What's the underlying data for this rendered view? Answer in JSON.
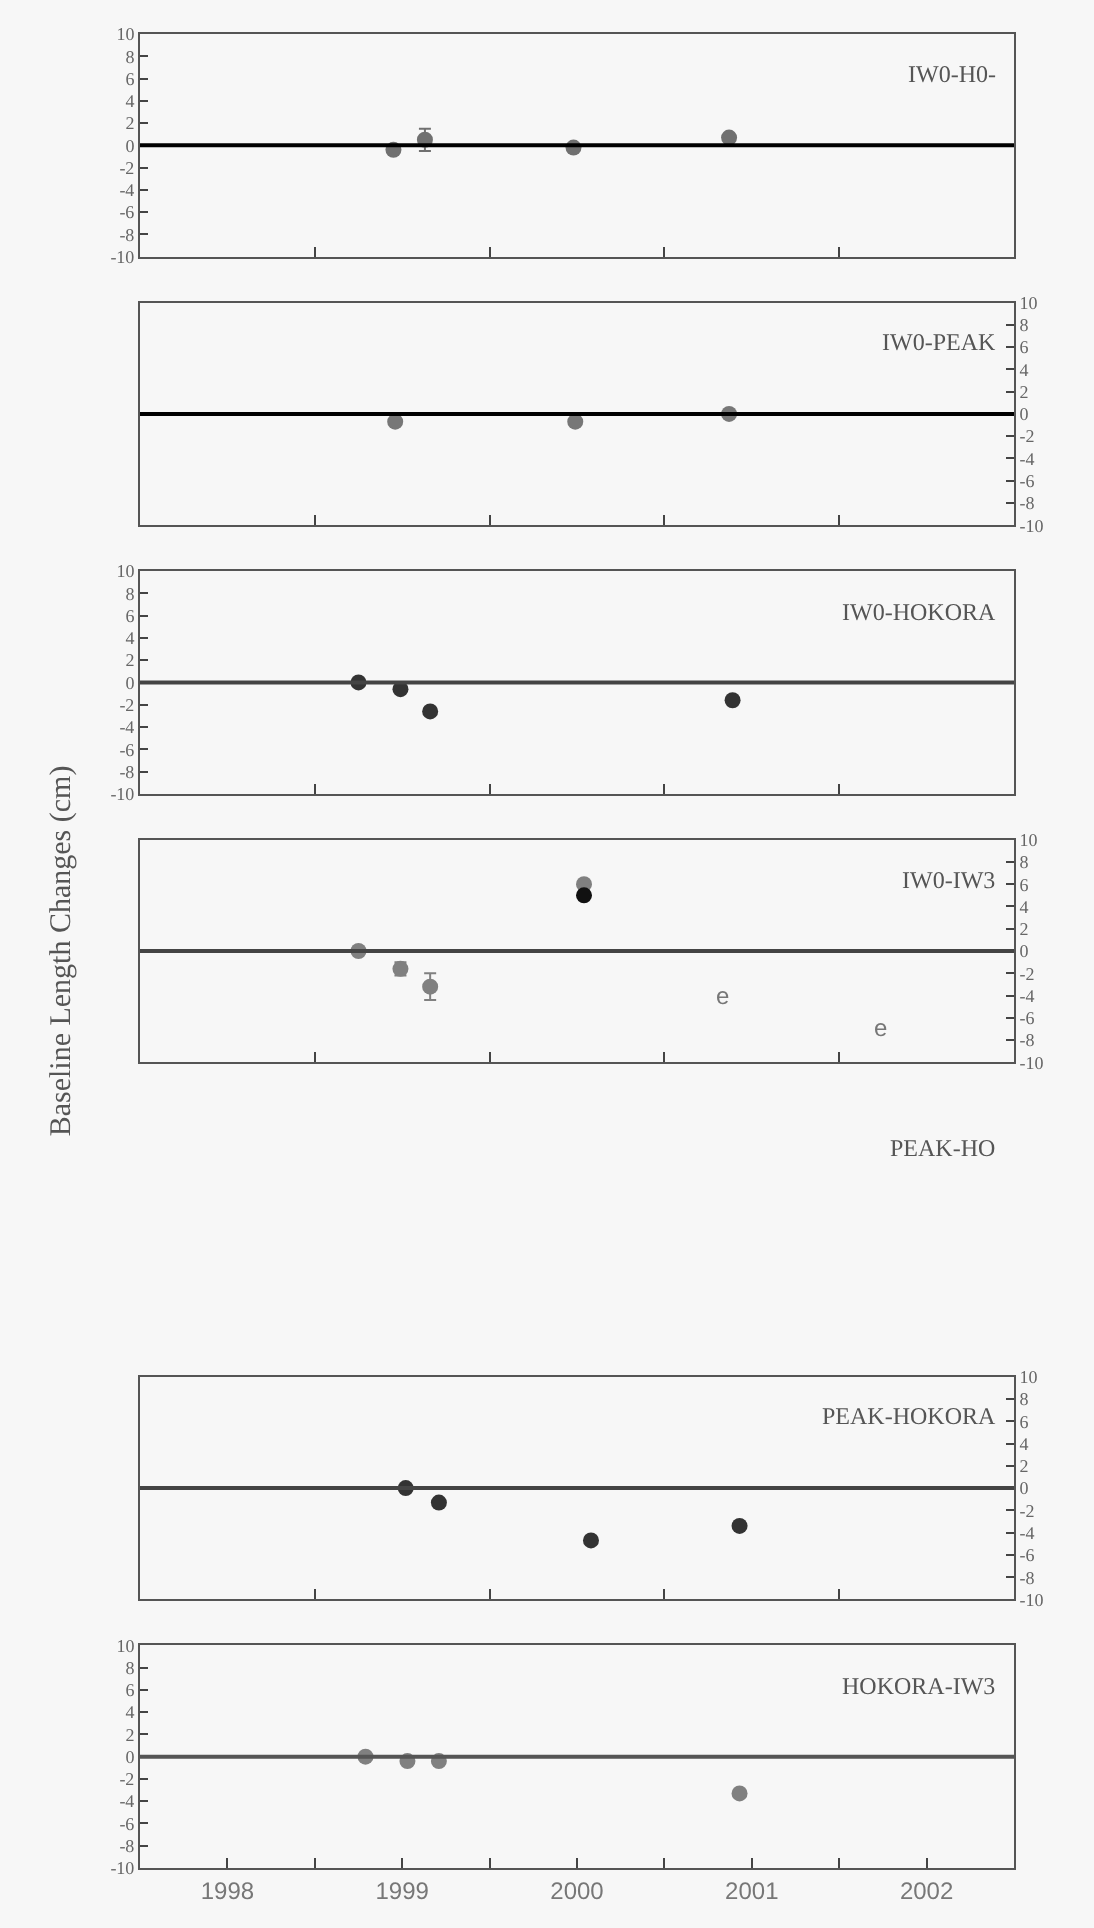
{
  "chart_data": [
    {
      "type": "scatter",
      "title": "IW0-H0-",
      "xlim": [
        1998,
        2003
      ],
      "xticks": [
        {
          "value": 1999,
          "label": null
        },
        {
          "value": 2000,
          "label": null
        },
        {
          "value": 2001,
          "label": null
        },
        {
          "value": 2002,
          "label": null
        }
      ],
      "ylim": [
        -10,
        10
      ],
      "yticks": [
        -10,
        -8,
        -6,
        -4,
        -2,
        0,
        2,
        4,
        6,
        8,
        10
      ],
      "tick_labels": "y",
      "ref_lines": [
        {
          "axis": "y",
          "value": 0,
          "color": "#000000"
        }
      ],
      "marker": "circle",
      "series": [
        {
          "color": "#707070",
          "x": [
            1999.45,
            1999.63,
            2000.48,
            2001.37
          ],
          "values": [
            -0.4,
            0.5,
            -0.2,
            0.7
          ],
          "errors": [
            null,
            1,
            null,
            null
          ]
        }
      ]
    },
    {
      "type": "scatter",
      "title": "IW0-PEAK",
      "xlim": [
        1998,
        2003
      ],
      "xticks": [
        {
          "value": 1999,
          "label": null
        },
        {
          "value": 2000,
          "label": null
        },
        {
          "value": 2001,
          "label": null
        },
        {
          "value": 2002,
          "label": null
        }
      ],
      "y2lim": [
        -10,
        10
      ],
      "y2ticks": [
        -10,
        -8,
        -6,
        -4,
        -2,
        0,
        2,
        4,
        6,
        8,
        10
      ],
      "tick_labels": "y",
      "ref_lines": [
        {
          "axis": "y2",
          "value": 0,
          "color": "#000000"
        }
      ],
      "marker": "circle",
      "series": [
        {
          "color": "#777777",
          "axis": "y2",
          "x": [
            1999.46,
            2000.49,
            2001.37
          ],
          "values": [
            -0.7,
            -0.7,
            0
          ]
        }
      ]
    },
    {
      "type": "scatter",
      "title": "IW0-HOKORA",
      "xlim": [
        1998,
        2003
      ],
      "xticks": [
        {
          "value": 1999,
          "label": null
        },
        {
          "value": 2000,
          "label": null
        },
        {
          "value": 2001,
          "label": null
        },
        {
          "value": 2002,
          "label": null
        }
      ],
      "ylim": [
        -10,
        10
      ],
      "yticks": [
        -10,
        -8,
        -6,
        -4,
        -2,
        0,
        2,
        4,
        6,
        8,
        10
      ],
      "tick_labels": "y",
      "ref_lines": [
        {
          "axis": "y",
          "value": 0,
          "color": "#444444"
        }
      ],
      "marker": "circle",
      "series": [
        {
          "color": "#333333",
          "x": [
            1999.25,
            1999.49,
            1999.66,
            2001.39
          ],
          "values": [
            0,
            -0.6,
            -2.6,
            -1.6
          ]
        }
      ]
    },
    {
      "type": "scatter",
      "title": "IW0-IW3",
      "ylabel": "Baseline Length Changes (cm)",
      "xlim": [
        1998,
        2003
      ],
      "xticks": [
        {
          "value": 1999,
          "label": null
        },
        {
          "value": 2000,
          "label": null
        },
        {
          "value": 2001,
          "label": null
        },
        {
          "value": 2002,
          "label": null
        }
      ],
      "y2lim": [
        -10,
        10
      ],
      "y2ticks": [
        -10,
        -8,
        -6,
        -4,
        -2,
        0,
        2,
        4,
        6,
        8,
        10
      ],
      "tick_labels": "y",
      "ref_lines": [
        {
          "axis": "y2",
          "value": 0,
          "color": "#444444"
        }
      ],
      "marker": "circle",
      "annotations": [
        "e",
        "e"
      ],
      "series": [
        {
          "color": "#808080",
          "axis": "y2",
          "x": [
            1999.25,
            1999.49,
            1999.66,
            2000.54
          ],
          "values": [
            0,
            -1.6,
            -3.2,
            6
          ],
          "errors": [
            null,
            0.6,
            1.2,
            null
          ]
        },
        {
          "color": "#111111",
          "axis": "y2",
          "x": [
            2000.54
          ],
          "values": [
            5
          ]
        }
      ]
    },
    {
      "type": "other",
      "title": "PEAK-HO"
    },
    {
      "type": "scatter",
      "title": "PEAK-HOKORA",
      "xlim": [
        1998,
        2003
      ],
      "xticks": [
        {
          "value": 1999,
          "label": null
        },
        {
          "value": 2000,
          "label": null
        },
        {
          "value": 2001,
          "label": null
        },
        {
          "value": 2002,
          "label": null
        }
      ],
      "y2lim": [
        -10,
        10
      ],
      "y2ticks": [
        -10,
        -8,
        -6,
        -4,
        -2,
        0,
        2,
        4,
        6,
        8,
        10
      ],
      "tick_labels": "y",
      "ref_lines": [
        {
          "axis": "y2",
          "value": 0,
          "color": "#444444"
        }
      ],
      "marker": "circle",
      "series": [
        {
          "color": "#333333",
          "axis": "y2",
          "x": [
            1999.52,
            1999.71,
            2000.58,
            2001.43
          ],
          "values": [
            0,
            -1.3,
            -4.7,
            -3.4
          ]
        }
      ]
    },
    {
      "type": "scatter",
      "title": "HOKORA-IW3",
      "xlim": [
        1998,
        2003
      ],
      "xticks": [
        {
          "value": 1998.5,
          "label": "1998"
        },
        {
          "value": 1999,
          "label": null
        },
        {
          "value": 1999.5,
          "label": "1999"
        },
        {
          "value": 2000,
          "label": null
        },
        {
          "value": 2000.5,
          "label": "2000"
        },
        {
          "value": 2001,
          "label": null
        },
        {
          "value": 2001.5,
          "label": "2001"
        },
        {
          "value": 2002,
          "label": null
        },
        {
          "value": 2002.5,
          "label": "2002"
        }
      ],
      "ylim": [
        -10,
        10
      ],
      "yticks": [
        -10,
        -8,
        -6,
        -4,
        -2,
        0,
        2,
        4,
        6,
        8,
        10
      ],
      "ref_lines": [
        {
          "axis": "y",
          "value": 0,
          "color": "#555555"
        }
      ],
      "marker": "circle",
      "series": [
        {
          "color": "#808080",
          "x": [
            1999.29,
            1999.53,
            1999.71,
            2001.43
          ],
          "values": [
            0,
            -0.4,
            -0.4,
            -3.3
          ]
        }
      ]
    }
  ]
}
